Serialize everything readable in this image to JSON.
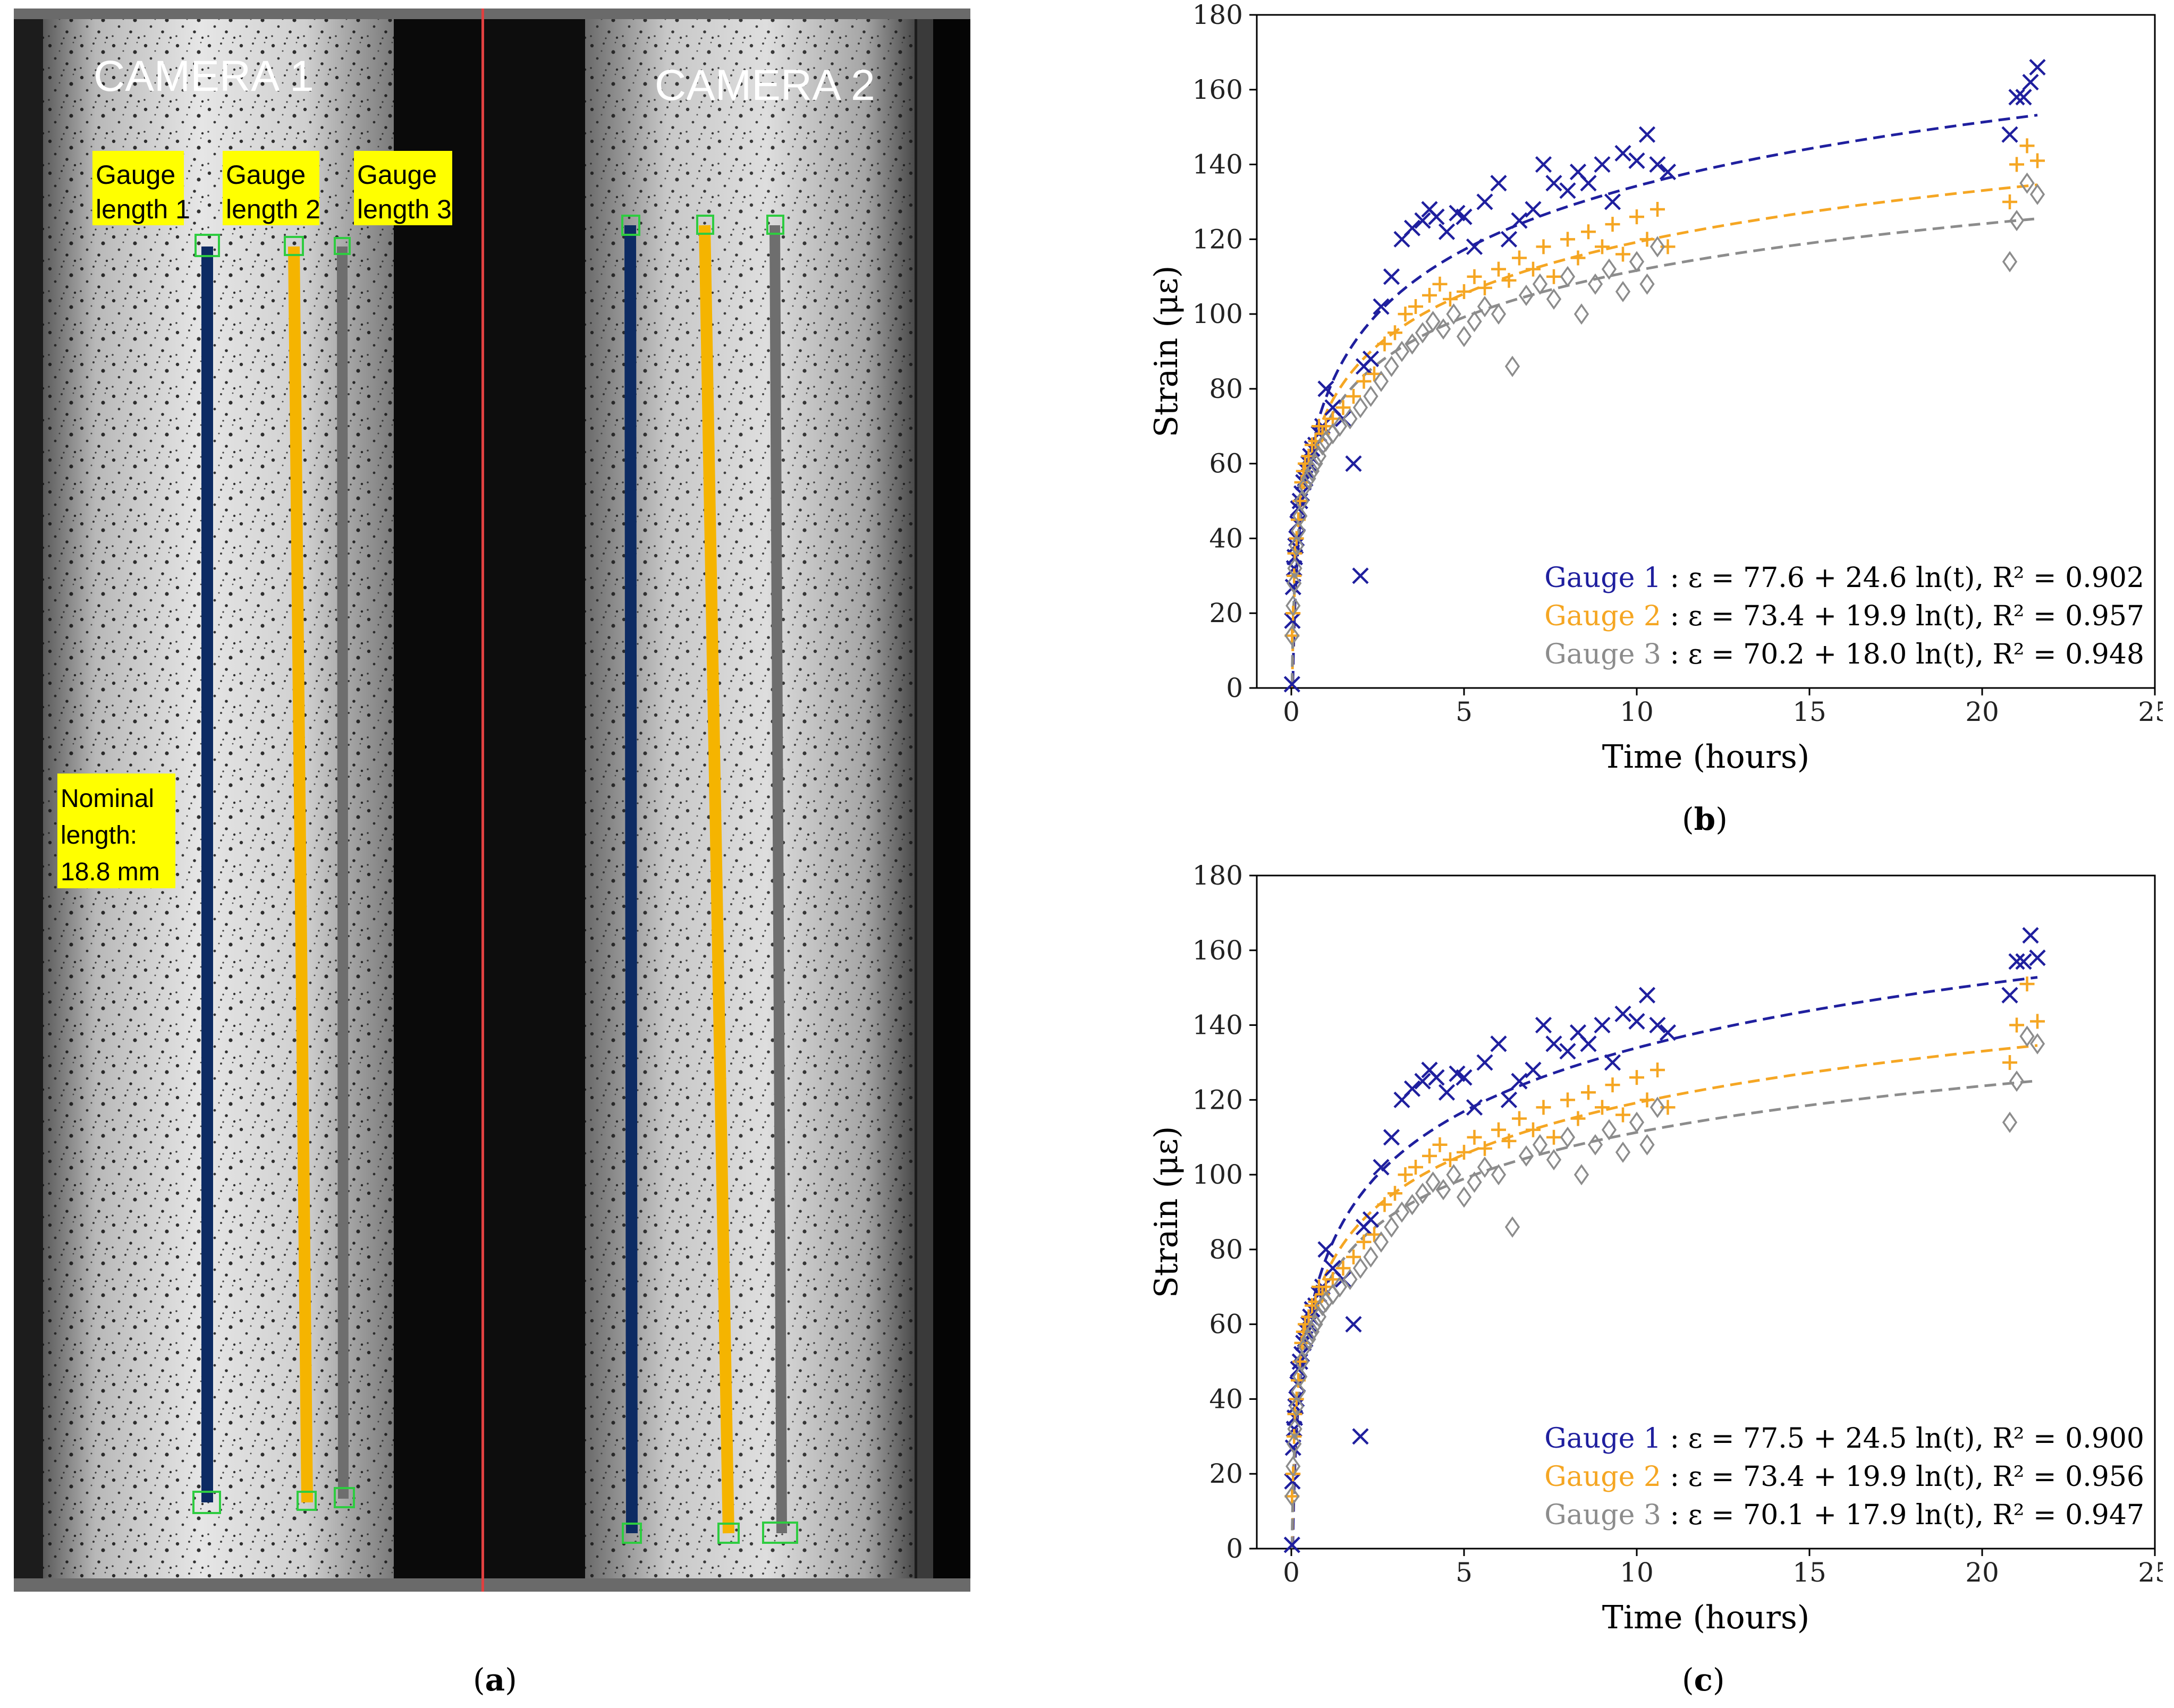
{
  "photo": {
    "camera1_label": "CAMERA 1",
    "camera2_label": "CAMERA 2",
    "gauge_labels": [
      [
        "Gauge",
        "length 1"
      ],
      [
        "Gauge",
        "length 2"
      ],
      [
        "Gauge",
        "length 3"
      ]
    ],
    "nominal_label": [
      "Nominal",
      "length:",
      "18.8 mm"
    ],
    "colors": {
      "gauge1": "#0d2b63",
      "gauge2": "#f5b400",
      "gauge3": "#6e6e6e",
      "label_bg": "#ffff00",
      "marker": "#2ecc40",
      "divider": "#e04040"
    }
  },
  "captions": {
    "a": "a",
    "b": "b",
    "c": "c"
  },
  "chart_data": [
    {
      "panel": "b",
      "type": "scatter",
      "xlabel": "Time (hours)",
      "ylabel": "Strain (με)",
      "xlim": [
        -1,
        25
      ],
      "ylim": [
        0,
        180
      ],
      "xticks": [
        0,
        5,
        10,
        15,
        20,
        25
      ],
      "yticks": [
        0,
        20,
        40,
        60,
        80,
        100,
        120,
        140,
        160,
        180
      ],
      "series": [
        {
          "name": "Gauge 1",
          "color": "#1f1f9e",
          "marker": "x",
          "fit": {
            "a": 77.6,
            "b": 24.6,
            "r2": 0.902
          },
          "legend_text": " : ε = 77.6 + 24.6 ln(t), R² = 0.902",
          "x": [
            0.02,
            0.03,
            0.05,
            0.08,
            0.1,
            0.12,
            0.15,
            0.18,
            0.2,
            0.25,
            0.3,
            0.35,
            0.4,
            0.45,
            0.5,
            0.55,
            0.6,
            0.7,
            0.8,
            0.9,
            1.0,
            1.2,
            1.5,
            1.8,
            2.0,
            2.1,
            2.3,
            2.6,
            2.9,
            3.2,
            3.5,
            3.8,
            4.0,
            4.2,
            4.5,
            4.8,
            5.0,
            5.3,
            5.6,
            6.0,
            6.3,
            6.6,
            7.0,
            7.3,
            7.6,
            8.0,
            8.3,
            8.6,
            9.0,
            9.3,
            9.6,
            10.0,
            10.3,
            10.6,
            10.9,
            20.8,
            21.0,
            21.2,
            21.4,
            21.6
          ],
          "y": [
            1,
            18,
            27,
            32,
            35,
            38,
            40,
            44,
            48,
            50,
            52,
            55,
            56,
            58,
            60,
            62,
            64,
            65,
            68,
            70,
            80,
            75,
            72,
            60,
            30,
            86,
            88,
            102,
            110,
            120,
            123,
            125,
            128,
            126,
            122,
            127,
            126,
            118,
            130,
            135,
            120,
            125,
            128,
            140,
            135,
            133,
            138,
            135,
            140,
            130,
            143,
            141,
            148,
            140,
            138,
            148,
            158,
            158,
            162,
            166
          ]
        },
        {
          "name": "Gauge 2",
          "color": "#f5a623",
          "marker": "+",
          "fit": {
            "a": 73.4,
            "b": 19.9,
            "r2": 0.957
          },
          "legend_text": " : ε = 73.4 + 19.9 ln(t), R² = 0.957",
          "x": [
            0.02,
            0.05,
            0.08,
            0.1,
            0.15,
            0.2,
            0.25,
            0.3,
            0.35,
            0.4,
            0.5,
            0.6,
            0.7,
            0.8,
            0.9,
            1.0,
            1.2,
            1.5,
            1.8,
            2.1,
            2.4,
            2.7,
            3.0,
            3.3,
            3.6,
            4.0,
            4.3,
            4.6,
            5.0,
            5.3,
            5.6,
            6.0,
            6.3,
            6.6,
            7.0,
            7.3,
            7.6,
            8.0,
            8.3,
            8.6,
            9.0,
            9.3,
            9.6,
            10.0,
            10.3,
            10.6,
            10.9,
            20.8,
            21.0,
            21.3,
            21.6
          ],
          "y": [
            14,
            20,
            30,
            36,
            40,
            45,
            50,
            55,
            58,
            60,
            62,
            65,
            66,
            70,
            68,
            70,
            72,
            75,
            78,
            82,
            84,
            92,
            95,
            100,
            102,
            105,
            108,
            104,
            106,
            110,
            107,
            112,
            109,
            115,
            112,
            118,
            110,
            120,
            115,
            122,
            118,
            124,
            116,
            126,
            120,
            128,
            118,
            130,
            140,
            145,
            141
          ]
        },
        {
          "name": "Gauge 3",
          "color": "#8c8c8c",
          "marker": "diamond",
          "fit": {
            "a": 70.2,
            "b": 18.0,
            "r2": 0.948
          },
          "legend_text": " : ε = 70.2 + 18.0 ln(t), R² = 0.948",
          "x": [
            0.02,
            0.05,
            0.08,
            0.1,
            0.15,
            0.2,
            0.25,
            0.3,
            0.4,
            0.5,
            0.6,
            0.7,
            0.8,
            0.9,
            1.0,
            1.2,
            1.4,
            1.7,
            2.0,
            2.3,
            2.6,
            2.9,
            3.2,
            3.5,
            3.8,
            4.1,
            4.4,
            4.7,
            5.0,
            5.3,
            5.6,
            6.0,
            6.4,
            6.8,
            7.2,
            7.6,
            8.0,
            8.4,
            8.8,
            9.2,
            9.6,
            10.0,
            10.3,
            10.6,
            20.8,
            21.0,
            21.3,
            21.6
          ],
          "y": [
            14,
            22,
            28,
            32,
            38,
            42,
            46,
            50,
            54,
            56,
            58,
            60,
            62,
            65,
            66,
            68,
            70,
            72,
            75,
            78,
            82,
            86,
            90,
            92,
            95,
            98,
            96,
            100,
            94,
            98,
            102,
            100,
            86,
            105,
            108,
            104,
            110,
            100,
            108,
            112,
            106,
            114,
            108,
            118,
            114,
            125,
            135,
            132
          ]
        }
      ]
    },
    {
      "panel": "c",
      "type": "scatter",
      "xlabel": "Time (hours)",
      "ylabel": "Strain (με)",
      "xlim": [
        -1,
        25
      ],
      "ylim": [
        0,
        180
      ],
      "xticks": [
        0,
        5,
        10,
        15,
        20,
        25
      ],
      "yticks": [
        0,
        20,
        40,
        60,
        80,
        100,
        120,
        140,
        160,
        180
      ],
      "series": [
        {
          "name": "Gauge 1",
          "color": "#1f1f9e",
          "marker": "x",
          "fit": {
            "a": 77.5,
            "b": 24.5,
            "r2": 0.9
          },
          "legend_text": " : ε = 77.5 + 24.5 ln(t), R² = 0.900",
          "x": [
            0.02,
            0.03,
            0.05,
            0.08,
            0.1,
            0.12,
            0.15,
            0.18,
            0.2,
            0.25,
            0.3,
            0.35,
            0.4,
            0.45,
            0.5,
            0.55,
            0.6,
            0.7,
            0.8,
            0.9,
            1.0,
            1.2,
            1.5,
            1.8,
            2.0,
            2.1,
            2.3,
            2.6,
            2.9,
            3.2,
            3.5,
            3.8,
            4.0,
            4.2,
            4.5,
            4.8,
            5.0,
            5.3,
            5.6,
            6.0,
            6.3,
            6.6,
            7.0,
            7.3,
            7.6,
            8.0,
            8.3,
            8.6,
            9.0,
            9.3,
            9.6,
            10.0,
            10.3,
            10.6,
            10.9,
            20.8,
            21.0,
            21.2,
            21.4,
            21.6
          ],
          "y": [
            1,
            18,
            27,
            32,
            35,
            38,
            40,
            44,
            48,
            50,
            52,
            55,
            56,
            58,
            60,
            62,
            64,
            65,
            68,
            70,
            80,
            75,
            72,
            60,
            30,
            86,
            88,
            102,
            110,
            120,
            123,
            125,
            128,
            126,
            122,
            127,
            126,
            118,
            130,
            135,
            120,
            125,
            128,
            140,
            135,
            133,
            138,
            135,
            140,
            130,
            143,
            141,
            148,
            140,
            138,
            148,
            157,
            157,
            164,
            158
          ]
        },
        {
          "name": "Gauge 2",
          "color": "#f5a623",
          "marker": "+",
          "fit": {
            "a": 73.4,
            "b": 19.9,
            "r2": 0.956
          },
          "legend_text": " : ε = 73.4 + 19.9 ln(t), R² = 0.956",
          "x": [
            0.02,
            0.05,
            0.08,
            0.1,
            0.15,
            0.2,
            0.25,
            0.3,
            0.35,
            0.4,
            0.5,
            0.6,
            0.7,
            0.8,
            0.9,
            1.0,
            1.2,
            1.5,
            1.8,
            2.1,
            2.4,
            2.7,
            3.0,
            3.3,
            3.6,
            4.0,
            4.3,
            4.6,
            5.0,
            5.3,
            5.6,
            6.0,
            6.3,
            6.6,
            7.0,
            7.3,
            7.6,
            8.0,
            8.3,
            8.6,
            9.0,
            9.3,
            9.6,
            10.0,
            10.3,
            10.6,
            10.9,
            20.8,
            21.0,
            21.3,
            21.6
          ],
          "y": [
            14,
            20,
            30,
            36,
            40,
            45,
            50,
            55,
            58,
            60,
            62,
            65,
            66,
            70,
            68,
            70,
            72,
            75,
            78,
            82,
            84,
            92,
            95,
            100,
            102,
            105,
            108,
            104,
            106,
            110,
            107,
            112,
            109,
            115,
            112,
            118,
            110,
            120,
            115,
            122,
            118,
            124,
            116,
            126,
            120,
            128,
            118,
            130,
            140,
            151,
            141
          ]
        },
        {
          "name": "Gauge 3",
          "color": "#8c8c8c",
          "marker": "diamond",
          "fit": {
            "a": 70.1,
            "b": 17.9,
            "r2": 0.947
          },
          "legend_text": " : ε = 70.1 + 17.9 ln(t), R² = 0.947",
          "x": [
            0.02,
            0.05,
            0.08,
            0.1,
            0.15,
            0.2,
            0.25,
            0.3,
            0.4,
            0.5,
            0.6,
            0.7,
            0.8,
            0.9,
            1.0,
            1.2,
            1.4,
            1.7,
            2.0,
            2.3,
            2.6,
            2.9,
            3.2,
            3.5,
            3.8,
            4.1,
            4.4,
            4.7,
            5.0,
            5.3,
            5.6,
            6.0,
            6.4,
            6.8,
            7.2,
            7.6,
            8.0,
            8.4,
            8.8,
            9.2,
            9.6,
            10.0,
            10.3,
            10.6,
            20.8,
            21.0,
            21.3,
            21.6
          ],
          "y": [
            14,
            22,
            28,
            32,
            38,
            42,
            46,
            50,
            54,
            56,
            58,
            60,
            62,
            65,
            66,
            68,
            70,
            72,
            75,
            78,
            82,
            86,
            90,
            92,
            95,
            98,
            96,
            100,
            94,
            98,
            102,
            100,
            86,
            105,
            108,
            104,
            110,
            100,
            108,
            112,
            106,
            114,
            108,
            118,
            114,
            125,
            137,
            135
          ]
        }
      ]
    }
  ]
}
